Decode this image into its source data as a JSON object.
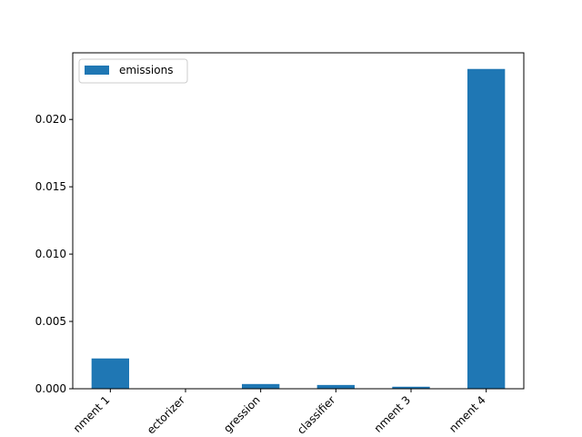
{
  "chart_data": {
    "type": "bar",
    "categories": [
      "nment 1",
      "ectorizer",
      "gression",
      "classifier",
      "nment 3",
      "nment 4"
    ],
    "series": [
      {
        "name": "emissions",
        "values": [
          0.00225,
          0.0,
          0.00035,
          0.00028,
          0.00015,
          0.02375
        ],
        "color": "#1f77b4"
      }
    ],
    "y_ticks": [
      0.0,
      0.005,
      0.01,
      0.015,
      0.02
    ],
    "y_tick_labels": [
      "0.000",
      "0.005",
      "0.010",
      "0.015",
      "0.020"
    ],
    "ylim": [
      0,
      0.02495
    ],
    "title": "",
    "xlabel": "",
    "ylabel": "",
    "legend": {
      "placement": "top-left"
    },
    "grid": false,
    "x_tick_rotation": 45
  }
}
